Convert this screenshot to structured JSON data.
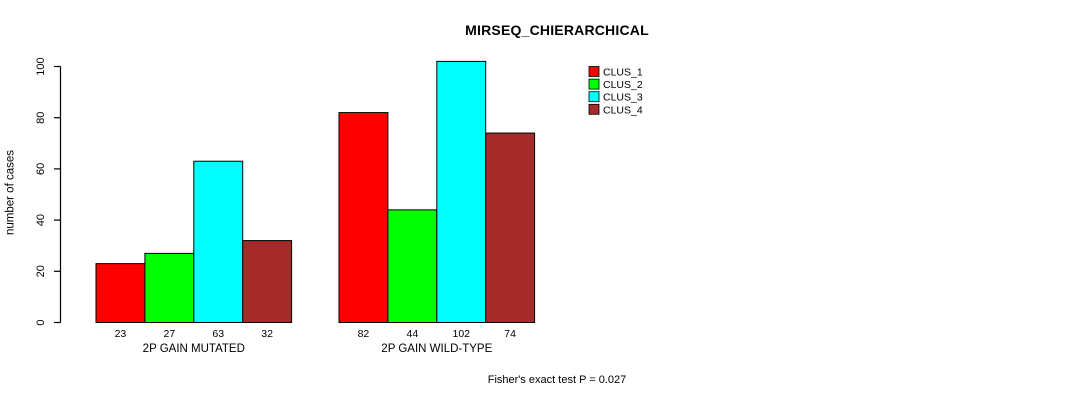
{
  "title": "MIRSEQ_CHIERARCHICAL",
  "annotation": "Fisher's exact test P = 0.027",
  "y_axis": {
    "label": "number of cases"
  },
  "legend": {
    "entries": [
      "CLUS_1",
      "CLUS_2",
      "CLUS_3",
      "CLUS_4"
    ],
    "position": "top-right"
  },
  "chart_data": {
    "type": "bar",
    "title": "MIRSEQ_CHIERARCHICAL",
    "xlabel": "",
    "ylabel": "number of cases",
    "categories": [
      "2P GAIN MUTATED",
      "2P GAIN WILD-TYPE"
    ],
    "series": [
      {
        "name": "CLUS_1",
        "color": "#ff0000",
        "values": [
          23,
          82
        ]
      },
      {
        "name": "CLUS_2",
        "color": "#00ff00",
        "values": [
          27,
          44
        ]
      },
      {
        "name": "CLUS_3",
        "color": "#00ffff",
        "values": [
          63,
          102
        ]
      },
      {
        "name": "CLUS_4",
        "color": "#a52a2a",
        "values": [
          32,
          74
        ]
      }
    ],
    "bar_value_labels": [
      [
        23,
        27,
        63,
        32
      ],
      [
        82,
        44,
        102,
        74
      ]
    ],
    "ylim": [
      0,
      100
    ],
    "yticks": [
      0,
      20,
      40,
      60,
      80,
      100
    ],
    "grid": false,
    "legend_position": "top-right",
    "annotation": "Fisher's exact test P = 0.027",
    "axis_color": "#000000",
    "bar_border_color": "#000000"
  }
}
